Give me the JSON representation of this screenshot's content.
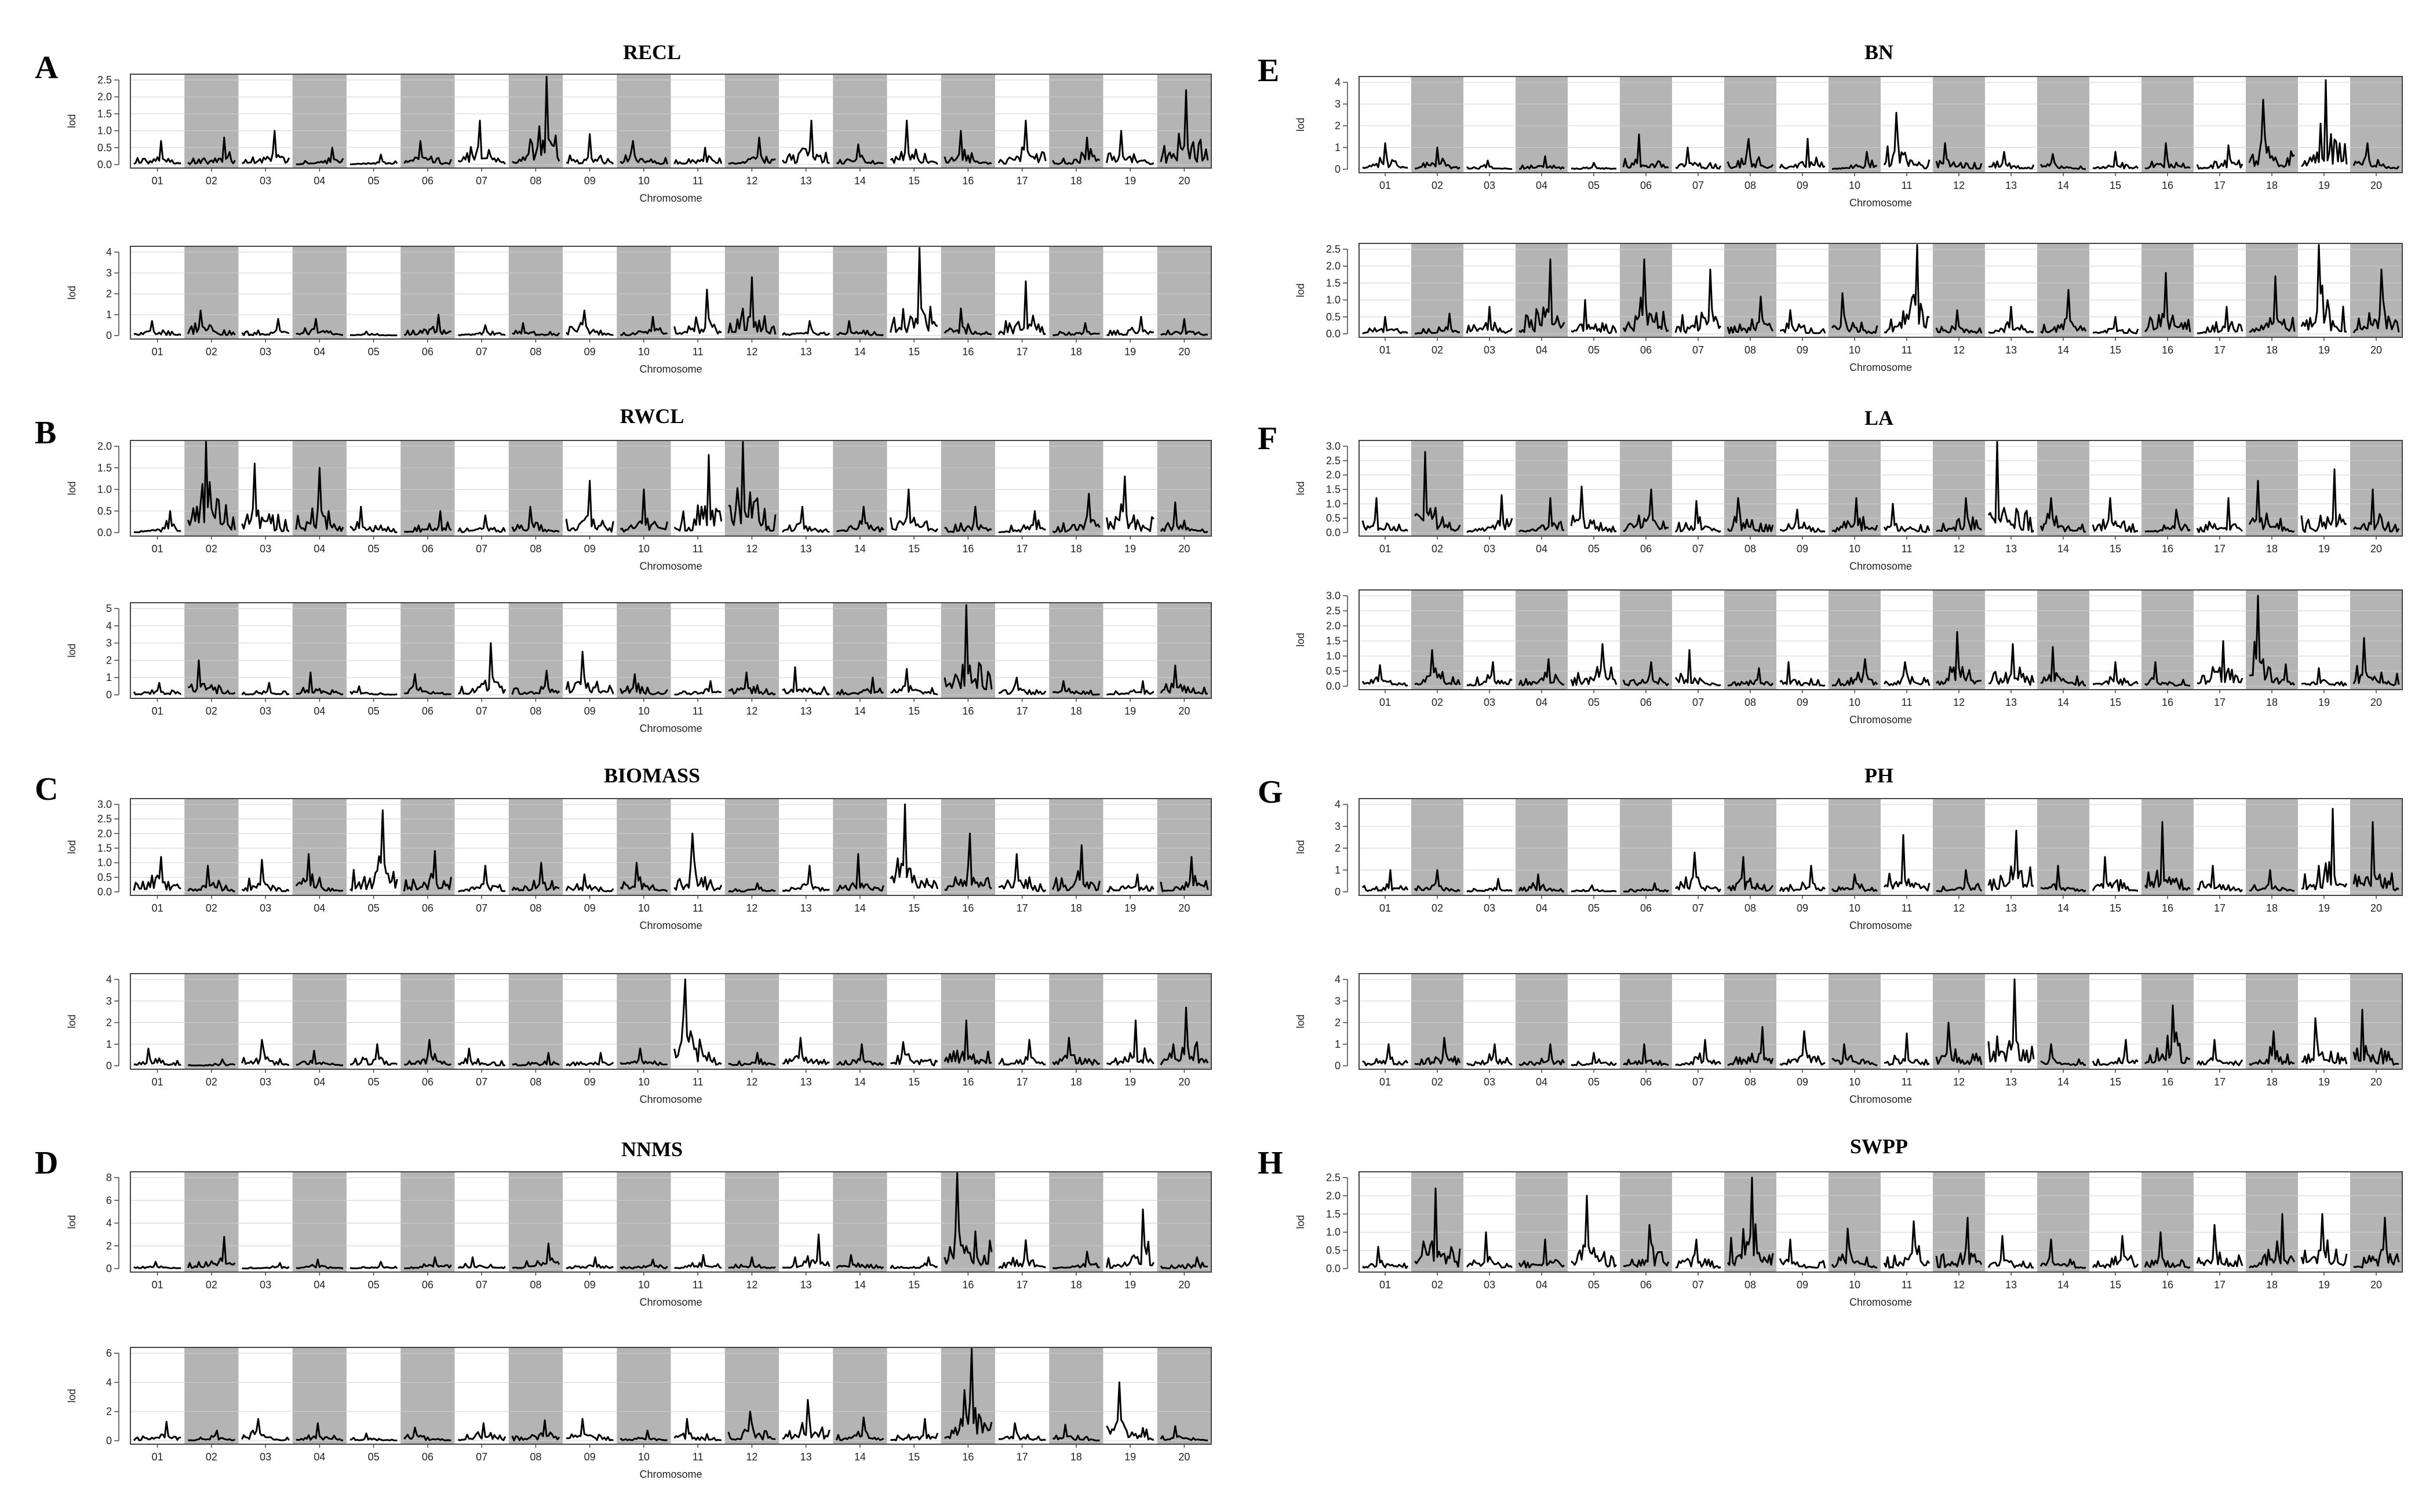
{
  "chart_data": {
    "type": "line",
    "chromosomes": [
      "01",
      "02",
      "03",
      "04",
      "05",
      "06",
      "07",
      "08",
      "09",
      "10",
      "11",
      "12",
      "13",
      "14",
      "15",
      "16",
      "17",
      "18",
      "19",
      "20"
    ],
    "ylabel": "lod",
    "xlabel": "Chromosome",
    "grid": true,
    "shaded_chromosomes": [
      "02",
      "04",
      "06",
      "08",
      "10",
      "12",
      "14",
      "16",
      "18",
      "20"
    ],
    "panels": [
      {
        "letter": "A",
        "title": "RECL",
        "plots": [
          {
            "ylim": [
              0,
              2.5
            ],
            "yticks": [
              "0.0",
              "0.5",
              "1.0",
              "1.5",
              "2.0",
              "2.5"
            ],
            "peaks": [
              0.7,
              0.8,
              1.0,
              0.5,
              0.3,
              0.7,
              1.3,
              2.6,
              0.9,
              0.7,
              0.5,
              0.8,
              1.3,
              0.6,
              1.3,
              1.0,
              1.3,
              0.8,
              1.0,
              2.2
            ]
          },
          {
            "ylim": [
              0,
              4
            ],
            "yticks": [
              "0",
              "1",
              "2",
              "3",
              "4"
            ],
            "peaks": [
              0.7,
              1.2,
              0.8,
              0.8,
              0.2,
              1.0,
              0.5,
              0.6,
              1.2,
              0.9,
              2.2,
              2.8,
              0.7,
              0.7,
              4.5,
              1.3,
              2.6,
              0.6,
              0.9,
              0.8
            ]
          }
        ]
      },
      {
        "letter": "B",
        "title": "RWCL",
        "plots": [
          {
            "ylim": [
              0,
              2.0
            ],
            "yticks": [
              "0.0",
              "0.5",
              "1.0",
              "1.5",
              "2.0"
            ],
            "peaks": [
              0.5,
              2.3,
              1.6,
              1.5,
              0.6,
              0.5,
              0.4,
              0.6,
              1.2,
              1.0,
              1.8,
              2.1,
              0.6,
              0.6,
              1.0,
              0.6,
              0.5,
              0.9,
              1.3,
              0.7
            ]
          },
          {
            "ylim": [
              0,
              5
            ],
            "yticks": [
              "0",
              "1",
              "2",
              "3",
              "4",
              "5"
            ],
            "peaks": [
              0.7,
              2.0,
              0.7,
              1.3,
              0.5,
              1.2,
              3.0,
              1.4,
              2.5,
              1.2,
              0.8,
              1.3,
              1.6,
              1.0,
              1.5,
              5.2,
              1.0,
              0.8,
              0.8,
              1.7
            ]
          }
        ]
      },
      {
        "letter": "C",
        "title": "BIOMASS",
        "plots": [
          {
            "ylim": [
              0,
              3.0
            ],
            "yticks": [
              "0.0",
              "0.5",
              "1.0",
              "1.5",
              "2.0",
              "2.5",
              "3.0"
            ],
            "peaks": [
              1.2,
              0.9,
              1.1,
              1.3,
              2.8,
              1.4,
              0.9,
              1.0,
              0.6,
              1.0,
              2.0,
              0.3,
              0.9,
              1.3,
              3.0,
              2.0,
              1.3,
              1.6,
              0.6,
              1.2
            ]
          },
          {
            "ylim": [
              0,
              4
            ],
            "yticks": [
              "0",
              "1",
              "2",
              "3",
              "4"
            ],
            "peaks": [
              0.8,
              0.3,
              1.2,
              0.7,
              1.0,
              1.2,
              0.8,
              0.6,
              0.6,
              0.8,
              4.0,
              0.6,
              1.3,
              1.0,
              1.1,
              2.1,
              1.2,
              1.3,
              2.1,
              2.7
            ]
          }
        ]
      },
      {
        "letter": "D",
        "title": "NNMS",
        "plots": [
          {
            "ylim": [
              0,
              8
            ],
            "yticks": [
              "0",
              "2",
              "4",
              "6",
              "8"
            ],
            "peaks": [
              0.6,
              2.8,
              0.5,
              0.8,
              0.6,
              1.0,
              1.0,
              2.2,
              1.0,
              0.8,
              1.2,
              1.0,
              3.0,
              1.2,
              1.0,
              8.8,
              2.5,
              1.5,
              5.2,
              1.0
            ]
          },
          {
            "ylim": [
              0,
              6
            ],
            "yticks": [
              "0",
              "2",
              "4",
              "6"
            ],
            "peaks": [
              1.3,
              0.7,
              1.5,
              1.2,
              0.5,
              0.9,
              1.2,
              1.4,
              1.5,
              0.7,
              1.5,
              2.0,
              2.8,
              1.6,
              1.5,
              7.2,
              1.2,
              1.1,
              4.0,
              1.0
            ]
          }
        ]
      },
      {
        "letter": "E",
        "title": "BN",
        "plots": [
          {
            "ylim": [
              0,
              4
            ],
            "yticks": [
              "0",
              "1",
              "2",
              "3",
              "4"
            ],
            "peaks": [
              1.2,
              1.0,
              0.4,
              0.6,
              0.3,
              1.6,
              1.0,
              1.4,
              1.4,
              0.8,
              2.6,
              1.2,
              0.8,
              0.7,
              0.8,
              1.2,
              1.1,
              3.2,
              4.1,
              1.2
            ]
          },
          {
            "ylim": [
              0,
              2.5
            ],
            "yticks": [
              "0.0",
              "0.5",
              "1.0",
              "1.5",
              "2.0",
              "2.5"
            ],
            "peaks": [
              0.5,
              0.6,
              0.8,
              2.2,
              1.0,
              2.2,
              1.9,
              1.1,
              0.7,
              1.2,
              2.8,
              0.7,
              0.8,
              1.3,
              0.5,
              1.8,
              0.8,
              1.7,
              2.8,
              1.9
            ]
          }
        ]
      },
      {
        "letter": "F",
        "title": "LA",
        "plots": [
          {
            "ylim": [
              0,
              3.0
            ],
            "yticks": [
              "0.0",
              "0.5",
              "1.0",
              "1.5",
              "2.0",
              "2.5",
              "3.0"
            ],
            "peaks": [
              1.2,
              2.8,
              1.3,
              1.2,
              1.6,
              1.5,
              1.1,
              1.2,
              0.8,
              1.2,
              1.0,
              1.2,
              3.2,
              1.2,
              1.2,
              0.8,
              1.2,
              1.8,
              2.2,
              1.5
            ]
          },
          {
            "ylim": [
              0,
              3.0
            ],
            "yticks": [
              "0.0",
              "0.5",
              "1.0",
              "1.5",
              "2.0",
              "2.5",
              "3.0"
            ],
            "peaks": [
              0.7,
              1.2,
              0.8,
              0.9,
              1.4,
              0.8,
              1.2,
              0.6,
              0.8,
              0.9,
              0.8,
              1.8,
              1.4,
              1.3,
              0.8,
              0.8,
              1.5,
              3.0,
              0.6,
              1.6
            ]
          }
        ]
      },
      {
        "letter": "G",
        "title": "PH",
        "plots": [
          {
            "ylim": [
              0,
              4
            ],
            "yticks": [
              "0",
              "1",
              "2",
              "3",
              "4"
            ],
            "peaks": [
              1.0,
              1.0,
              0.6,
              0.8,
              0.3,
              0.4,
              1.8,
              1.6,
              1.2,
              0.8,
              2.6,
              1.0,
              2.8,
              1.2,
              1.6,
              3.2,
              1.2,
              1.0,
              3.8,
              3.2
            ]
          },
          {
            "ylim": [
              0,
              4
            ],
            "yticks": [
              "0",
              "1",
              "2",
              "3",
              "4"
            ],
            "peaks": [
              1.0,
              1.3,
              1.0,
              1.0,
              0.6,
              1.0,
              1.2,
              1.8,
              1.6,
              1.0,
              1.5,
              2.0,
              4.0,
              1.0,
              1.2,
              2.8,
              1.2,
              1.6,
              2.2,
              2.6
            ]
          }
        ]
      },
      {
        "letter": "H",
        "title": "SWPP",
        "plots": [
          {
            "ylim": [
              0,
              2.5
            ],
            "yticks": [
              "0.0",
              "0.5",
              "1.0",
              "1.5",
              "2.0",
              "2.5"
            ],
            "peaks": [
              0.6,
              2.2,
              1.0,
              0.8,
              2.0,
              1.2,
              0.8,
              2.5,
              0.8,
              1.1,
              1.3,
              1.4,
              0.9,
              0.8,
              0.9,
              1.0,
              1.2,
              1.5,
              1.5,
              1.4
            ]
          }
        ]
      }
    ]
  }
}
